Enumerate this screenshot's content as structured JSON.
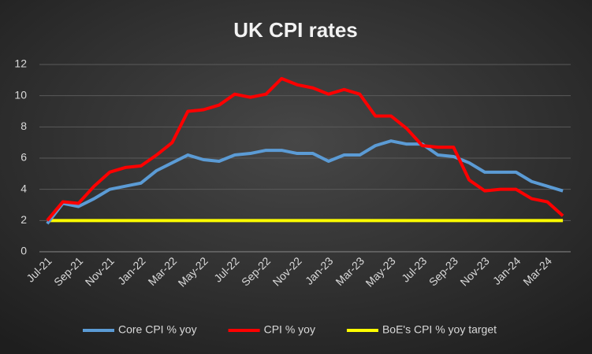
{
  "chart_data": {
    "type": "line",
    "title": "UK CPI rates",
    "categories": [
      "Jul-21",
      null,
      "Sep-21",
      null,
      "Nov-21",
      null,
      "Jan-22",
      null,
      "Mar-22",
      null,
      "May-22",
      null,
      "Jul-22",
      null,
      "Sep-22",
      null,
      "Nov-22",
      null,
      "Jan-23",
      null,
      "Mar-23",
      null,
      "May-23",
      null,
      "Jul-23",
      null,
      "Sep-23",
      null,
      "Nov-23",
      null,
      "Jan-24",
      null,
      "Mar-24",
      null
    ],
    "series": [
      {
        "name": "Core CPI % yoy",
        "color": "#5b9bd5",
        "values": [
          1.8,
          3.1,
          2.9,
          3.4,
          4.0,
          4.2,
          4.4,
          5.2,
          5.7,
          6.2,
          5.9,
          5.8,
          6.2,
          6.3,
          6.5,
          6.5,
          6.3,
          6.3,
          5.8,
          6.2,
          6.2,
          6.8,
          7.1,
          6.9,
          6.9,
          6.2,
          6.1,
          5.7,
          5.1,
          5.1,
          5.1,
          4.5,
          4.2,
          3.9
        ]
      },
      {
        "name": "CPI % yoy",
        "color": "#ff0000",
        "values": [
          2.0,
          3.2,
          3.1,
          4.2,
          5.1,
          5.4,
          5.5,
          6.2,
          7.0,
          9.0,
          9.1,
          9.4,
          10.1,
          9.9,
          10.1,
          11.1,
          10.7,
          10.5,
          10.1,
          10.4,
          10.1,
          8.7,
          8.7,
          7.9,
          6.8,
          6.7,
          6.7,
          4.6,
          3.9,
          4.0,
          4.0,
          3.4,
          3.2,
          2.3
        ]
      },
      {
        "name": "BoE's CPI % yoy target",
        "color": "#ffff00",
        "values": [
          2,
          2,
          2,
          2,
          2,
          2,
          2,
          2,
          2,
          2,
          2,
          2,
          2,
          2,
          2,
          2,
          2,
          2,
          2,
          2,
          2,
          2,
          2,
          2,
          2,
          2,
          2,
          2,
          2,
          2,
          2,
          2,
          2,
          2
        ]
      }
    ],
    "ylim": [
      0,
      12
    ],
    "yticks": [
      0,
      2,
      4,
      6,
      8,
      10,
      12
    ],
    "grid": true
  }
}
